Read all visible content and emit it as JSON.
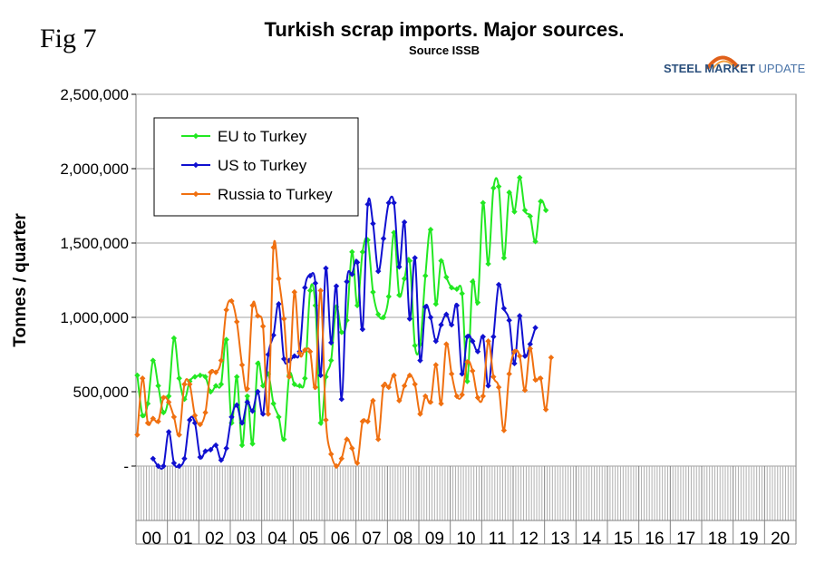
{
  "figure_label": "Fig 7",
  "logo": {
    "brand": "STEEL",
    "name": "MARKET",
    "suffix": "UPDATE"
  },
  "colors": {
    "eu": "#22e822",
    "us": "#1010d0",
    "russia": "#f07010"
  },
  "chart_data": {
    "type": "line",
    "title": "Turkish scrap imports. Major sources.",
    "subtitle": "Source ISSB",
    "ylabel": "Tonnes / quarter",
    "xlabel": "",
    "ylim": [
      0,
      2500000
    ],
    "y_ticks": [
      0,
      500000,
      1000000,
      1500000,
      2000000,
      2500000
    ],
    "y_tick_labels": [
      "-",
      "500,000",
      "1,000,000",
      "1,500,000",
      "2,000,000",
      "2,500,000"
    ],
    "x_unit": "month",
    "years": [
      "00",
      "01",
      "02",
      "03",
      "04",
      "05",
      "06",
      "07",
      "08",
      "09",
      "10",
      "11",
      "12",
      "13",
      "14",
      "15",
      "16",
      "17",
      "18",
      "19",
      "20"
    ],
    "legend_position": "top-left",
    "grid": "horizontal",
    "series": [
      {
        "name": "EU to Turkey",
        "color": "#22e822",
        "points": [
          [
            0,
            610000
          ],
          [
            2,
            340000
          ],
          [
            4,
            420000
          ],
          [
            6,
            710000
          ],
          [
            8,
            540000
          ],
          [
            10,
            360000
          ],
          [
            12,
            470000
          ],
          [
            14,
            860000
          ],
          [
            16,
            590000
          ],
          [
            18,
            450000
          ],
          [
            20,
            570000
          ],
          [
            22,
            600000
          ],
          [
            24,
            610000
          ],
          [
            26,
            600000
          ],
          [
            28,
            500000
          ],
          [
            30,
            540000
          ],
          [
            32,
            550000
          ],
          [
            34,
            850000
          ],
          [
            36,
            290000
          ],
          [
            38,
            600000
          ],
          [
            40,
            140000
          ],
          [
            42,
            470000
          ],
          [
            44,
            150000
          ],
          [
            46,
            690000
          ],
          [
            48,
            540000
          ],
          [
            50,
            620000
          ],
          [
            52,
            420000
          ],
          [
            54,
            330000
          ],
          [
            56,
            180000
          ],
          [
            58,
            610000
          ],
          [
            60,
            550000
          ],
          [
            62,
            540000
          ],
          [
            64,
            590000
          ],
          [
            66,
            1180000
          ],
          [
            68,
            1080000
          ],
          [
            70,
            290000
          ],
          [
            72,
            600000
          ],
          [
            74,
            710000
          ],
          [
            76,
            1070000
          ],
          [
            78,
            900000
          ],
          [
            80,
            980000
          ],
          [
            82,
            1440000
          ],
          [
            84,
            1080000
          ],
          [
            86,
            1440000
          ],
          [
            88,
            1520000
          ],
          [
            90,
            1170000
          ],
          [
            92,
            1020000
          ],
          [
            94,
            1000000
          ],
          [
            96,
            1140000
          ],
          [
            98,
            1570000
          ],
          [
            100,
            1150000
          ],
          [
            102,
            1260000
          ],
          [
            104,
            1380000
          ],
          [
            106,
            810000
          ],
          [
            108,
            820000
          ],
          [
            110,
            1280000
          ],
          [
            112,
            1590000
          ],
          [
            114,
            1090000
          ],
          [
            116,
            1380000
          ],
          [
            118,
            1270000
          ],
          [
            120,
            1200000
          ],
          [
            122,
            1190000
          ],
          [
            124,
            1160000
          ],
          [
            126,
            570000
          ],
          [
            128,
            1240000
          ],
          [
            130,
            1100000
          ],
          [
            132,
            1770000
          ],
          [
            134,
            1360000
          ],
          [
            136,
            1870000
          ],
          [
            138,
            1880000
          ],
          [
            140,
            1400000
          ],
          [
            142,
            1840000
          ],
          [
            144,
            1710000
          ],
          [
            146,
            1940000
          ],
          [
            148,
            1720000
          ],
          [
            150,
            1680000
          ],
          [
            152,
            1510000
          ],
          [
            154,
            1780000
          ],
          [
            156,
            1720000
          ]
        ]
      },
      {
        "name": "US to Turkey",
        "color": "#1010d0",
        "points": [
          [
            6,
            50000
          ],
          [
            8,
            0
          ],
          [
            10,
            0
          ],
          [
            12,
            230000
          ],
          [
            14,
            20000
          ],
          [
            16,
            0
          ],
          [
            18,
            50000
          ],
          [
            20,
            310000
          ],
          [
            22,
            290000
          ],
          [
            24,
            60000
          ],
          [
            26,
            100000
          ],
          [
            28,
            110000
          ],
          [
            30,
            140000
          ],
          [
            32,
            40000
          ],
          [
            34,
            120000
          ],
          [
            36,
            330000
          ],
          [
            38,
            410000
          ],
          [
            40,
            290000
          ],
          [
            42,
            430000
          ],
          [
            44,
            370000
          ],
          [
            46,
            500000
          ],
          [
            48,
            350000
          ],
          [
            50,
            750000
          ],
          [
            52,
            880000
          ],
          [
            54,
            1090000
          ],
          [
            56,
            720000
          ],
          [
            58,
            710000
          ],
          [
            60,
            740000
          ],
          [
            62,
            770000
          ],
          [
            64,
            1200000
          ],
          [
            66,
            1280000
          ],
          [
            68,
            1230000
          ],
          [
            70,
            610000
          ],
          [
            72,
            1330000
          ],
          [
            74,
            830000
          ],
          [
            76,
            1210000
          ],
          [
            78,
            450000
          ],
          [
            80,
            1240000
          ],
          [
            82,
            1290000
          ],
          [
            84,
            1370000
          ],
          [
            86,
            920000
          ],
          [
            88,
            1760000
          ],
          [
            90,
            1630000
          ],
          [
            92,
            1310000
          ],
          [
            94,
            1530000
          ],
          [
            96,
            1770000
          ],
          [
            98,
            1770000
          ],
          [
            100,
            1340000
          ],
          [
            102,
            1640000
          ],
          [
            104,
            990000
          ],
          [
            106,
            1400000
          ],
          [
            108,
            710000
          ],
          [
            110,
            1070000
          ],
          [
            112,
            1000000
          ],
          [
            114,
            840000
          ],
          [
            116,
            950000
          ],
          [
            118,
            1020000
          ],
          [
            120,
            950000
          ],
          [
            122,
            1080000
          ],
          [
            124,
            620000
          ],
          [
            126,
            870000
          ],
          [
            128,
            840000
          ],
          [
            130,
            770000
          ],
          [
            132,
            870000
          ],
          [
            134,
            540000
          ],
          [
            136,
            870000
          ],
          [
            138,
            1220000
          ],
          [
            140,
            1060000
          ],
          [
            142,
            980000
          ],
          [
            144,
            690000
          ],
          [
            146,
            1010000
          ],
          [
            148,
            740000
          ],
          [
            150,
            820000
          ],
          [
            152,
            930000
          ]
        ]
      },
      {
        "name": "Russia to Turkey",
        "color": "#f07010",
        "points": [
          [
            0,
            210000
          ],
          [
            2,
            590000
          ],
          [
            4,
            290000
          ],
          [
            6,
            320000
          ],
          [
            8,
            300000
          ],
          [
            10,
            460000
          ],
          [
            12,
            430000
          ],
          [
            14,
            330000
          ],
          [
            16,
            210000
          ],
          [
            18,
            550000
          ],
          [
            20,
            550000
          ],
          [
            22,
            340000
          ],
          [
            24,
            280000
          ],
          [
            26,
            360000
          ],
          [
            28,
            630000
          ],
          [
            30,
            630000
          ],
          [
            32,
            710000
          ],
          [
            34,
            1050000
          ],
          [
            36,
            1110000
          ],
          [
            38,
            970000
          ],
          [
            40,
            680000
          ],
          [
            42,
            520000
          ],
          [
            44,
            1080000
          ],
          [
            46,
            1010000
          ],
          [
            48,
            940000
          ],
          [
            50,
            350000
          ],
          [
            52,
            1470000
          ],
          [
            54,
            1260000
          ],
          [
            56,
            990000
          ],
          [
            58,
            600000
          ],
          [
            60,
            1170000
          ],
          [
            62,
            760000
          ],
          [
            64,
            780000
          ],
          [
            66,
            770000
          ],
          [
            68,
            530000
          ],
          [
            70,
            1180000
          ],
          [
            72,
            310000
          ],
          [
            74,
            80000
          ],
          [
            76,
            0
          ],
          [
            78,
            50000
          ],
          [
            80,
            180000
          ],
          [
            82,
            120000
          ],
          [
            84,
            20000
          ],
          [
            86,
            300000
          ],
          [
            88,
            300000
          ],
          [
            90,
            440000
          ],
          [
            92,
            180000
          ],
          [
            94,
            540000
          ],
          [
            96,
            530000
          ],
          [
            98,
            610000
          ],
          [
            100,
            440000
          ],
          [
            102,
            540000
          ],
          [
            104,
            610000
          ],
          [
            106,
            550000
          ],
          [
            108,
            350000
          ],
          [
            110,
            470000
          ],
          [
            112,
            430000
          ],
          [
            114,
            680000
          ],
          [
            116,
            420000
          ],
          [
            118,
            820000
          ],
          [
            120,
            620000
          ],
          [
            122,
            470000
          ],
          [
            124,
            480000
          ],
          [
            126,
            700000
          ],
          [
            128,
            640000
          ],
          [
            130,
            460000
          ],
          [
            132,
            470000
          ],
          [
            134,
            840000
          ],
          [
            136,
            600000
          ],
          [
            138,
            530000
          ],
          [
            140,
            240000
          ],
          [
            142,
            620000
          ],
          [
            144,
            770000
          ],
          [
            146,
            740000
          ],
          [
            148,
            510000
          ],
          [
            150,
            790000
          ],
          [
            152,
            580000
          ],
          [
            154,
            590000
          ],
          [
            156,
            380000
          ],
          [
            158,
            730000
          ]
        ]
      }
    ]
  }
}
